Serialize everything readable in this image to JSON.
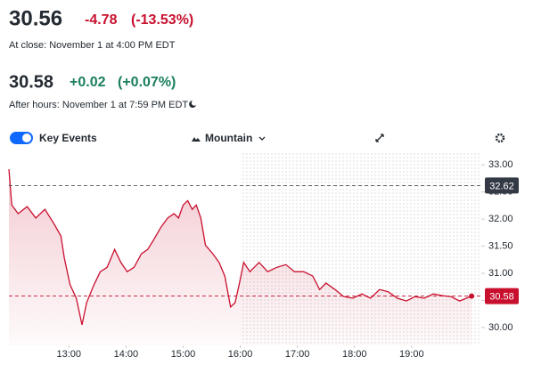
{
  "header": {
    "price": "30.56",
    "change": "-4.78",
    "change_percent": "(-13.53%)",
    "close_note": "At close: November 1 at 4:00 PM EDT",
    "after_price": "30.58",
    "after_change": "+0.02",
    "after_change_percent": "(+0.07%)",
    "after_note": "After hours: November 1 at 7:59 PM EDT"
  },
  "toolbar": {
    "toggle": "Key Events",
    "chart_style": "Mountain"
  },
  "chart_data": {
    "type": "line",
    "x": [
      11.95,
      12.0,
      12.11,
      12.27,
      12.42,
      12.58,
      12.73,
      12.86,
      12.92,
      13.02,
      13.13,
      13.23,
      13.31,
      13.44,
      13.55,
      13.67,
      13.8,
      13.91,
      14.02,
      14.14,
      14.27,
      14.38,
      14.48,
      14.61,
      14.73,
      14.84,
      14.92,
      15.0,
      15.08,
      15.16,
      15.23,
      15.31,
      15.39,
      15.52,
      15.63,
      15.73,
      15.83,
      15.91,
      15.98,
      16.06,
      16.17,
      16.33,
      16.48,
      16.64,
      16.8,
      16.95,
      17.11,
      17.27,
      17.39,
      17.5,
      17.66,
      17.81,
      17.97,
      18.13,
      18.28,
      18.44,
      18.59,
      18.75,
      18.91,
      19.06,
      19.22,
      19.38,
      19.53,
      19.69,
      19.84,
      20.05
    ],
    "series": [
      {
        "color": "#c8102e",
        "values": [
          32.92,
          32.26,
          32.1,
          32.23,
          32.02,
          32.18,
          31.93,
          31.69,
          31.28,
          30.79,
          30.54,
          30.05,
          30.46,
          30.79,
          31.03,
          31.11,
          31.44,
          31.2,
          31.03,
          31.11,
          31.36,
          31.44,
          31.61,
          31.85,
          32.02,
          32.1,
          32.02,
          32.26,
          32.34,
          32.18,
          32.26,
          32.02,
          31.52,
          31.36,
          31.2,
          30.95,
          30.38,
          30.46,
          30.79,
          31.2,
          31.03,
          31.2,
          31.03,
          31.11,
          31.16,
          31.03,
          31.03,
          30.95,
          30.7,
          30.82,
          30.7,
          30.57,
          30.54,
          30.62,
          30.54,
          30.7,
          30.66,
          30.54,
          30.49,
          30.57,
          30.54,
          30.62,
          30.59,
          30.57,
          30.49,
          30.58
        ]
      }
    ],
    "xlim": [
      11.95,
      20.22
    ],
    "xticks": [
      {
        "value": 13,
        "label": "13:00"
      },
      {
        "value": 14,
        "label": "14:00"
      },
      {
        "value": 15,
        "label": "15:00"
      },
      {
        "value": 16,
        "label": "16:00"
      },
      {
        "value": 17,
        "label": "17:00"
      },
      {
        "value": 18,
        "label": "18:00"
      },
      {
        "value": 19,
        "label": "19:00"
      }
    ],
    "ylim": [
      29.67,
      33.25
    ],
    "yticks": [
      {
        "value": 30,
        "label": "30.00"
      },
      {
        "value": 30.5,
        "label": "30.50"
      },
      {
        "value": 31,
        "label": "31.00"
      },
      {
        "value": 31.5,
        "label": "31.50"
      },
      {
        "value": 32,
        "label": "32.00"
      },
      {
        "value": 32.5,
        "label": "32.50"
      },
      {
        "value": 33,
        "label": "33.00"
      }
    ],
    "session_end": 16,
    "reference_lines": [
      {
        "value": 32.62,
        "color": "#333a45"
      },
      {
        "value": 30.58,
        "color": "#c8102e"
      }
    ]
  }
}
